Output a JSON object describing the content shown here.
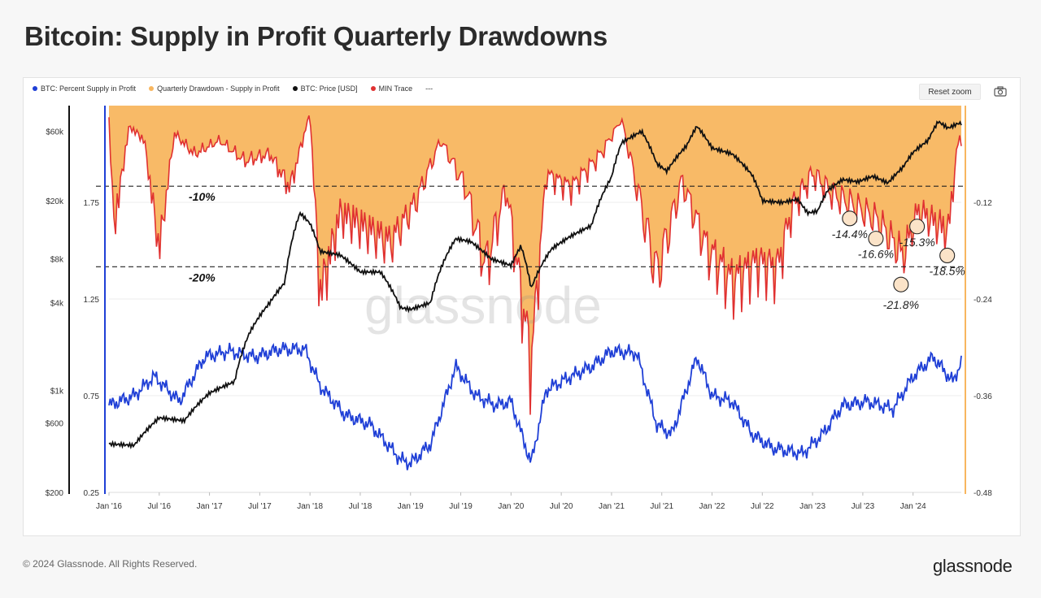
{
  "title": "Bitcoin: Supply in Profit Quarterly Drawdowns",
  "reset_zoom": "Reset zoom",
  "footer": "© 2024 Glassnode. All Rights Reserved.",
  "brand": "glassnode",
  "watermark": "glassnode",
  "camera_icon": "camera-icon",
  "legend": [
    {
      "label": "BTC: Percent Supply in Profit",
      "color": "#1f3fd6"
    },
    {
      "label": "Quarterly Drawdown - Supply in Profit",
      "color": "#f8b65f"
    },
    {
      "label": "BTC: Price [USD]",
      "color": "#111111"
    },
    {
      "label": "MIN Trace",
      "color": "#e03131"
    },
    {
      "label": "---",
      "color": ""
    }
  ],
  "chart_data": {
    "type": "line",
    "x_ticks": [
      "Jan '16",
      "Jul '16",
      "Jan '17",
      "Jul '17",
      "Jan '18",
      "Jul '18",
      "Jan '19",
      "Jul '19",
      "Jan '20",
      "Jul '20",
      "Jan '21",
      "Jul '21",
      "Jan '22",
      "Jul '22",
      "Jan '23",
      "Jul '23",
      "Jan '24"
    ],
    "price_axis": {
      "ticks": [
        "$60k",
        "$20k",
        "$8k",
        "$4k",
        "$1k",
        "$600",
        "$200"
      ],
      "scale": "log",
      "range": [
        200,
        90000
      ]
    },
    "supply_axis": {
      "ticks": [
        "1.75",
        "1.25",
        "0.75",
        "0.25"
      ],
      "range": [
        0.25,
        2.25
      ]
    },
    "drawdown_axis": {
      "ticks": [
        "-0.12",
        "-0.24",
        "-0.36",
        "-0.48"
      ],
      "range": [
        -0.48,
        0
      ]
    },
    "reference_lines": [
      {
        "value": -0.1,
        "label": "-10%"
      },
      {
        "value": -0.2,
        "label": "-20%"
      }
    ],
    "annotations": [
      {
        "x": 2023.37,
        "y": -0.14,
        "label": "-14.4%"
      },
      {
        "x": 2023.63,
        "y": -0.165,
        "label": "-16.6%"
      },
      {
        "x": 2023.88,
        "y": -0.222,
        "label": "-21.8%"
      },
      {
        "x": 2024.04,
        "y": -0.15,
        "label": "-15.3%"
      },
      {
        "x": 2024.34,
        "y": -0.186,
        "label": "-18.5%"
      }
    ],
    "series": [
      {
        "name": "BTC: Price [USD]",
        "color": "#111111",
        "points": [
          [
            2016.0,
            430
          ],
          [
            2016.25,
            420
          ],
          [
            2016.5,
            650
          ],
          [
            2016.75,
            620
          ],
          [
            2017.0,
            960
          ],
          [
            2017.25,
            1150
          ],
          [
            2017.4,
            2500
          ],
          [
            2017.6,
            4000
          ],
          [
            2017.75,
            5500
          ],
          [
            2017.9,
            16500
          ],
          [
            2018.0,
            14000
          ],
          [
            2018.1,
            9000
          ],
          [
            2018.3,
            8500
          ],
          [
            2018.5,
            6500
          ],
          [
            2018.7,
            6500
          ],
          [
            2018.9,
            3700
          ],
          [
            2019.0,
            3600
          ],
          [
            2019.2,
            4000
          ],
          [
            2019.45,
            11000
          ],
          [
            2019.6,
            10500
          ],
          [
            2019.8,
            8000
          ],
          [
            2020.0,
            7200
          ],
          [
            2020.1,
            9800
          ],
          [
            2020.2,
            5000
          ],
          [
            2020.4,
            9300
          ],
          [
            2020.6,
            11500
          ],
          [
            2020.8,
            13500
          ],
          [
            2021.0,
            29000
          ],
          [
            2021.1,
            50000
          ],
          [
            2021.3,
            60000
          ],
          [
            2021.45,
            36000
          ],
          [
            2021.55,
            32000
          ],
          [
            2021.75,
            48000
          ],
          [
            2021.85,
            65000
          ],
          [
            2022.0,
            46000
          ],
          [
            2022.2,
            42000
          ],
          [
            2022.4,
            30000
          ],
          [
            2022.5,
            20000
          ],
          [
            2022.7,
            19500
          ],
          [
            2022.85,
            20500
          ],
          [
            2022.95,
            16500
          ],
          [
            2023.05,
            17000
          ],
          [
            2023.15,
            23500
          ],
          [
            2023.3,
            28000
          ],
          [
            2023.45,
            27000
          ],
          [
            2023.6,
            29500
          ],
          [
            2023.75,
            26500
          ],
          [
            2023.9,
            34000
          ],
          [
            2024.0,
            43000
          ],
          [
            2024.15,
            52000
          ],
          [
            2024.25,
            70000
          ],
          [
            2024.35,
            63000
          ],
          [
            2024.45,
            68000
          ]
        ]
      },
      {
        "name": "BTC: Percent Supply in Profit",
        "color": "#1f3fd6",
        "points": [
          [
            2016.0,
            0.7
          ],
          [
            2016.25,
            0.75
          ],
          [
            2016.45,
            0.85
          ],
          [
            2016.7,
            0.72
          ],
          [
            2016.95,
            0.95
          ],
          [
            2017.2,
            0.98
          ],
          [
            2017.45,
            0.95
          ],
          [
            2017.7,
            0.99
          ],
          [
            2017.95,
            0.99
          ],
          [
            2018.1,
            0.8
          ],
          [
            2018.35,
            0.65
          ],
          [
            2018.6,
            0.6
          ],
          [
            2018.9,
            0.42
          ],
          [
            2019.0,
            0.4
          ],
          [
            2019.2,
            0.5
          ],
          [
            2019.45,
            0.9
          ],
          [
            2019.65,
            0.75
          ],
          [
            2019.85,
            0.7
          ],
          [
            2020.0,
            0.72
          ],
          [
            2020.2,
            0.4
          ],
          [
            2020.35,
            0.78
          ],
          [
            2020.6,
            0.85
          ],
          [
            2020.8,
            0.9
          ],
          [
            2021.0,
            0.98
          ],
          [
            2021.25,
            0.97
          ],
          [
            2021.45,
            0.6
          ],
          [
            2021.6,
            0.55
          ],
          [
            2021.85,
            0.95
          ],
          [
            2022.0,
            0.75
          ],
          [
            2022.2,
            0.72
          ],
          [
            2022.4,
            0.55
          ],
          [
            2022.6,
            0.48
          ],
          [
            2022.9,
            0.45
          ],
          [
            2023.1,
            0.55
          ],
          [
            2023.3,
            0.7
          ],
          [
            2023.55,
            0.72
          ],
          [
            2023.8,
            0.68
          ],
          [
            2024.0,
            0.85
          ],
          [
            2024.2,
            0.95
          ],
          [
            2024.4,
            0.82
          ],
          [
            2024.47,
            0.92
          ]
        ]
      },
      {
        "name": "MIN Trace",
        "color": "#e03131",
        "points": [
          [
            2016.0,
            -0.02
          ],
          [
            2016.05,
            -0.18
          ],
          [
            2016.2,
            -0.03
          ],
          [
            2016.35,
            -0.05
          ],
          [
            2016.5,
            -0.21
          ],
          [
            2016.65,
            -0.04
          ],
          [
            2016.85,
            -0.07
          ],
          [
            2017.1,
            -0.05
          ],
          [
            2017.35,
            -0.08
          ],
          [
            2017.6,
            -0.07
          ],
          [
            2017.8,
            -0.12
          ],
          [
            2018.0,
            -0.01
          ],
          [
            2018.1,
            -0.28
          ],
          [
            2018.3,
            -0.16
          ],
          [
            2018.55,
            -0.18
          ],
          [
            2018.8,
            -0.2
          ],
          [
            2019.05,
            -0.14
          ],
          [
            2019.3,
            -0.05
          ],
          [
            2019.55,
            -0.12
          ],
          [
            2019.75,
            -0.24
          ],
          [
            2019.95,
            -0.12
          ],
          [
            2020.2,
            -0.38
          ],
          [
            2020.35,
            -0.1
          ],
          [
            2020.6,
            -0.12
          ],
          [
            2020.9,
            -0.07
          ],
          [
            2021.1,
            -0.02
          ],
          [
            2021.45,
            -0.25
          ],
          [
            2021.7,
            -0.11
          ],
          [
            2021.95,
            -0.21
          ],
          [
            2022.2,
            -0.26
          ],
          [
            2022.45,
            -0.23
          ],
          [
            2022.65,
            -0.24
          ],
          [
            2022.8,
            -0.15
          ],
          [
            2023.0,
            -0.1
          ],
          [
            2023.2,
            -0.13
          ],
          [
            2023.4,
            -0.145
          ],
          [
            2023.65,
            -0.166
          ],
          [
            2023.9,
            -0.218
          ],
          [
            2024.05,
            -0.153
          ],
          [
            2024.35,
            -0.185
          ],
          [
            2024.45,
            -0.05
          ]
        ]
      }
    ]
  }
}
